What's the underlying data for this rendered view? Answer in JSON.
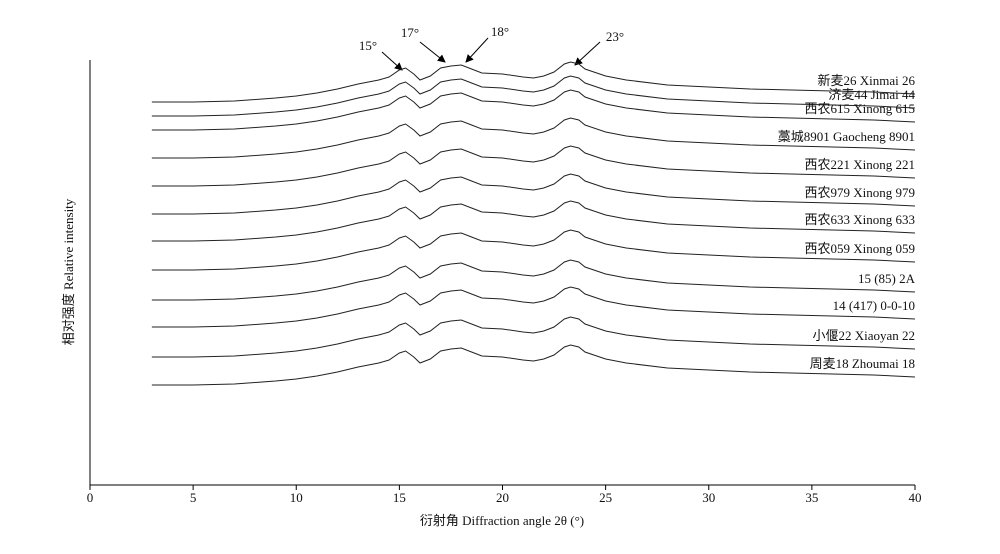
{
  "chart_data": {
    "type": "line",
    "x_label": "衍射角 Diffraction angle 2θ (°)",
    "y_label": "相对强度 Relative intensity",
    "xlim": [
      0,
      40
    ],
    "xticks": [
      0,
      5,
      10,
      15,
      20,
      25,
      30,
      35,
      40
    ],
    "ylim": [
      0,
      425
    ],
    "grid": false,
    "annotations": [
      "15°",
      "17°",
      "18°",
      "23°"
    ],
    "x": [
      3,
      5,
      7,
      9,
      10,
      11,
      12,
      13,
      14,
      14.5,
      15,
      15.3,
      15.7,
      16,
      16.5,
      17,
      17.5,
      18,
      18.5,
      19,
      20,
      21,
      21.5,
      22,
      22.5,
      23,
      23.3,
      23.7,
      24,
      25,
      26,
      28,
      30,
      32,
      34,
      36,
      38,
      40
    ],
    "series": [
      {
        "name": "新麦26 Xinmai 26",
        "color": "#222222",
        "values": [
          383,
          383,
          384,
          387,
          389,
          392,
          396,
          401,
          405,
          408,
          415,
          417,
          411,
          405,
          409,
          417,
          419,
          420,
          416,
          412,
          411,
          408,
          407,
          409,
          413,
          421,
          423,
          421,
          416,
          409,
          405,
          400,
          398,
          396,
          395,
          394,
          393,
          391
        ]
      },
      {
        "name": "济麦44 Jimai 44",
        "color": "#222222",
        "values": [
          369,
          369,
          370,
          373,
          375,
          378,
          382,
          387,
          391,
          394,
          401,
          403,
          397,
          391,
          395,
          403,
          405,
          406,
          402,
          398,
          397,
          394,
          393,
          395,
          399,
          407,
          409,
          407,
          402,
          395,
          391,
          386,
          384,
          382,
          381,
          380,
          379,
          377
        ]
      },
      {
        "name": "西农615 Xinong 615",
        "color": "#222222",
        "values": [
          355,
          355,
          356,
          359,
          361,
          364,
          368,
          373,
          377,
          380,
          387,
          389,
          383,
          377,
          381,
          389,
          391,
          392,
          388,
          384,
          383,
          380,
          379,
          381,
          385,
          393,
          395,
          393,
          388,
          381,
          377,
          372,
          370,
          368,
          367,
          366,
          365,
          363
        ]
      },
      {
        "name": "藁城8901 Gaocheng 8901",
        "color": "#222222",
        "values": [
          327,
          327,
          328,
          331,
          333,
          336,
          340,
          345,
          349,
          352,
          359,
          361,
          355,
          349,
          353,
          361,
          363,
          364,
          360,
          356,
          355,
          352,
          351,
          353,
          357,
          365,
          367,
          365,
          360,
          353,
          349,
          344,
          342,
          340,
          339,
          338,
          337,
          335
        ]
      },
      {
        "name": "西农221 Xinong 221",
        "color": "#222222",
        "values": [
          299,
          299,
          300,
          303,
          305,
          308,
          312,
          317,
          321,
          324,
          331,
          333,
          327,
          321,
          325,
          333,
          335,
          336,
          332,
          328,
          327,
          324,
          323,
          325,
          329,
          337,
          339,
          337,
          332,
          325,
          321,
          316,
          314,
          312,
          311,
          310,
          309,
          307
        ]
      },
      {
        "name": "西农979 Xinong 979",
        "color": "#222222",
        "values": [
          271,
          271,
          272,
          275,
          277,
          280,
          284,
          289,
          293,
          296,
          303,
          305,
          299,
          293,
          297,
          305,
          307,
          308,
          304,
          300,
          299,
          296,
          295,
          297,
          301,
          309,
          311,
          309,
          304,
          297,
          293,
          288,
          286,
          284,
          283,
          282,
          281,
          279
        ]
      },
      {
        "name": "西农633 Xinong 633",
        "color": "#222222",
        "values": [
          244,
          244,
          245,
          248,
          250,
          253,
          257,
          262,
          266,
          269,
          276,
          278,
          272,
          266,
          270,
          278,
          280,
          281,
          277,
          273,
          272,
          269,
          268,
          270,
          274,
          282,
          284,
          282,
          277,
          270,
          266,
          261,
          259,
          257,
          256,
          255,
          254,
          252
        ]
      },
      {
        "name": "西农059 Xinong 059",
        "color": "#222222",
        "values": [
          215,
          215,
          216,
          219,
          221,
          224,
          228,
          233,
          237,
          240,
          247,
          249,
          243,
          237,
          241,
          249,
          251,
          252,
          248,
          244,
          243,
          240,
          239,
          241,
          245,
          253,
          255,
          253,
          248,
          241,
          237,
          232,
          230,
          228,
          227,
          226,
          225,
          223
        ]
      },
      {
        "name": "15 (85) 2A",
        "color": "#222222",
        "values": [
          185,
          185,
          186,
          189,
          191,
          194,
          198,
          203,
          207,
          210,
          217,
          219,
          213,
          207,
          211,
          219,
          221,
          222,
          218,
          214,
          213,
          210,
          209,
          211,
          215,
          223,
          225,
          223,
          218,
          211,
          207,
          202,
          200,
          198,
          197,
          196,
          195,
          193
        ]
      },
      {
        "name": "14 (417) 0-0-10",
        "color": "#222222",
        "values": [
          158,
          158,
          159,
          162,
          164,
          167,
          171,
          176,
          180,
          183,
          190,
          192,
          186,
          180,
          184,
          192,
          194,
          195,
          191,
          187,
          186,
          183,
          182,
          184,
          188,
          196,
          198,
          196,
          191,
          184,
          180,
          175,
          173,
          171,
          170,
          169,
          168,
          166
        ]
      },
      {
        "name": "小偃22 Xiaoyan 22",
        "color": "#222222",
        "values": [
          128,
          128,
          129,
          132,
          134,
          137,
          141,
          146,
          150,
          153,
          160,
          162,
          156,
          150,
          154,
          162,
          164,
          165,
          161,
          157,
          156,
          153,
          152,
          154,
          158,
          166,
          168,
          166,
          161,
          154,
          150,
          145,
          143,
          141,
          140,
          139,
          138,
          136
        ]
      },
      {
        "name": "周麦18 Zhoumai 18",
        "color": "#222222",
        "values": [
          100,
          100,
          101,
          104,
          106,
          109,
          113,
          118,
          122,
          125,
          132,
          134,
          128,
          122,
          126,
          134,
          136,
          137,
          133,
          129,
          128,
          125,
          124,
          126,
          130,
          138,
          140,
          138,
          133,
          126,
          122,
          117,
          115,
          113,
          112,
          111,
          110,
          108
        ]
      }
    ]
  }
}
